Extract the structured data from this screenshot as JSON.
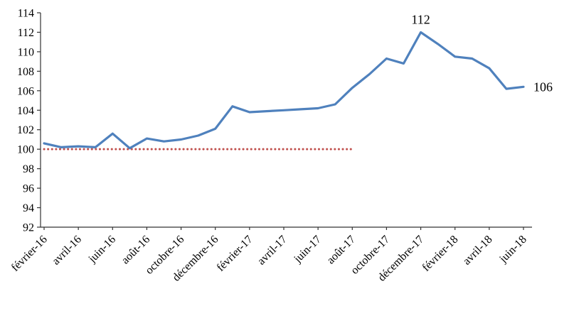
{
  "chart_data": {
    "type": "line",
    "title": "",
    "xlabel": "",
    "ylabel": "",
    "categories": [
      "février-16",
      "mars-16",
      "avril-16",
      "mai-16",
      "juin-16",
      "juillet-16",
      "août-16",
      "septembre-16",
      "octobre-16",
      "novembre-16",
      "décembre-16",
      "janvier-17",
      "février-17",
      "mars-17",
      "avril-17",
      "mai-17",
      "juin-17",
      "juillet-17",
      "août-17",
      "septembre-17",
      "octobre-17",
      "novembre-17",
      "décembre-17",
      "janvier-18",
      "février-18",
      "mars-18",
      "avril-18",
      "mai-18",
      "juin-18"
    ],
    "x_tick_labels": [
      "février-16",
      "avril-16",
      "juin-16",
      "août-16",
      "octobre-16",
      "décembre-16",
      "février-17",
      "avril-17",
      "juin-17",
      "août-17",
      "octobre-17",
      "décembre-17",
      "février-18",
      "avril-18",
      "juin-18"
    ],
    "series": [
      {
        "color": "#4F81BD",
        "values": [
          100.6,
          100.2,
          100.3,
          100.2,
          101.6,
          100.1,
          101.1,
          100.8,
          101.0,
          101.4,
          102.1,
          104.4,
          103.8,
          103.9,
          104.0,
          104.1,
          104.2,
          104.6,
          106.3,
          107.7,
          109.3,
          108.8,
          112.0,
          110.8,
          109.5,
          109.3,
          108.3,
          106.2,
          106.4
        ]
      }
    ],
    "reference_line": {
      "value": 100,
      "color": "#C0504D",
      "style": "dotted",
      "start_category": "février-16",
      "end_category": "août-17"
    },
    "annotations": [
      {
        "text": "112",
        "category": "décembre-17",
        "value": 112,
        "position": "above"
      },
      {
        "text": "106",
        "category": "juin-18",
        "value": 106.4,
        "position": "right"
      }
    ],
    "ylim": [
      92,
      114
    ],
    "ytick_step": 2,
    "grid": false,
    "legend": false
  },
  "colors": {
    "line": "#4F81BD",
    "reference": "#C0504D",
    "axis": "#333333",
    "text": "#000000",
    "background": "#FFFFFF"
  }
}
